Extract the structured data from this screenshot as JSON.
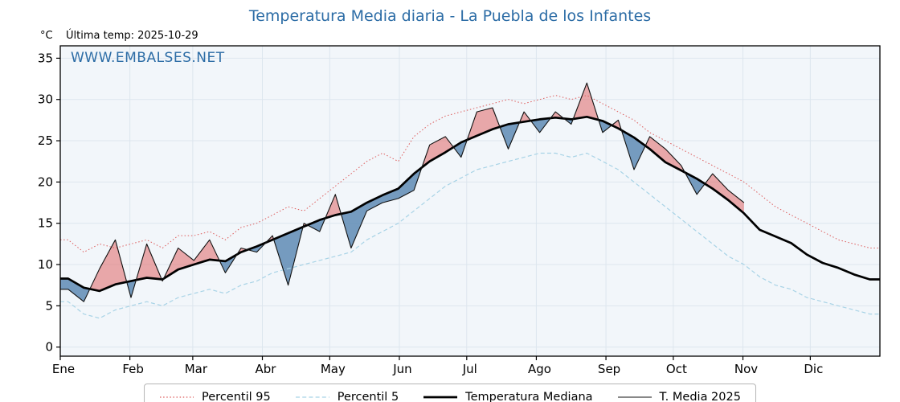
{
  "header": {
    "title": "Temperatura Media diaria - La Puebla de los Infantes",
    "y_unit_label": "°C",
    "last_temp": "Última temp: 2025-10-29",
    "watermark": "WWW.EMBALSES.NET"
  },
  "colors": {
    "title_blue": "#2d6da6",
    "watermark_blue": "#2d6da6",
    "axis_black": "#000000"
  },
  "chart_data": {
    "type": "line",
    "title": "Temperatura Media diaria - La Puebla de los Infantes",
    "ylabel": "°C",
    "ylim": [
      -1.1,
      36.5
    ],
    "yticks": [
      0,
      5,
      10,
      15,
      20,
      25,
      30,
      35
    ],
    "x_months": [
      "Ene",
      "Feb",
      "Mar",
      "Abr",
      "May",
      "Jun",
      "Jul",
      "Ago",
      "Sep",
      "Oct",
      "Nov",
      "Dic"
    ],
    "month_start_days": [
      0,
      31,
      59,
      90,
      120,
      151,
      181,
      212,
      243,
      273,
      304,
      334
    ],
    "days_per_year": 365,
    "sampling": {
      "offset_days": 3.5,
      "step_days": 7
    },
    "plot_bg": "#f2f6fa",
    "grid_color": "#dde6ee",
    "fills": {
      "above": "rgba(224,102,102,0.55)",
      "below": "rgba(95,139,180,0.85)"
    },
    "legend_position": "bottom-center",
    "series": [
      {
        "name": "Percentil 95",
        "role": "p95",
        "style": "dotted",
        "color": "#dd5c5c",
        "values": [
          13.0,
          11.5,
          12.5,
          12.0,
          12.5,
          13.0,
          12.0,
          13.5,
          13.5,
          14.0,
          13.0,
          14.5,
          15.0,
          16.0,
          17.0,
          16.5,
          18.0,
          19.5,
          21.0,
          22.5,
          23.5,
          22.5,
          25.5,
          27.0,
          28.0,
          28.5,
          29.0,
          29.5,
          30.0,
          29.5,
          30.0,
          30.5,
          30.0,
          30.5,
          29.5,
          28.5,
          27.5,
          26.0,
          25.0,
          24.0,
          23.0,
          22.0,
          21.0,
          20.0,
          18.5,
          17.0,
          16.0,
          15.0,
          14.0,
          13.0,
          12.5,
          12.0
        ]
      },
      {
        "name": "Percentil 5",
        "role": "p5",
        "style": "dashed",
        "color": "#a8d3e6",
        "values": [
          5.5,
          4.0,
          3.5,
          4.5,
          5.0,
          5.5,
          5.0,
          6.0,
          6.5,
          7.0,
          6.5,
          7.5,
          8.0,
          9.0,
          9.5,
          10.0,
          10.5,
          11.0,
          11.5,
          13.0,
          14.0,
          15.0,
          16.5,
          18.0,
          19.5,
          20.5,
          21.5,
          22.0,
          22.5,
          23.0,
          23.5,
          23.5,
          23.0,
          23.5,
          22.5,
          21.5,
          20.0,
          18.5,
          17.0,
          15.5,
          14.0,
          12.5,
          11.0,
          10.0,
          8.5,
          7.5,
          7.0,
          6.0,
          5.5,
          5.0,
          4.5,
          4.0
        ]
      },
      {
        "name": "Temperatura Mediana",
        "role": "median",
        "style": "solid-thick",
        "color": "#000000",
        "values": [
          8.3,
          7.2,
          6.8,
          7.6,
          8.0,
          8.4,
          8.2,
          9.4,
          10.0,
          10.6,
          10.4,
          11.5,
          12.2,
          13.0,
          13.8,
          14.6,
          15.4,
          16.0,
          16.4,
          17.5,
          18.4,
          19.2,
          21.0,
          22.5,
          23.6,
          24.8,
          25.6,
          26.4,
          27.0,
          27.3,
          27.6,
          27.8,
          27.6,
          27.9,
          27.4,
          26.5,
          25.4,
          24.0,
          22.4,
          21.4,
          20.4,
          19.2,
          17.8,
          16.2,
          14.2,
          13.4,
          12.6,
          11.2,
          10.2,
          9.6,
          8.8,
          8.2
        ]
      },
      {
        "name": "T. Media 2025",
        "role": "current",
        "style": "solid-thin",
        "color": "#111111",
        "values": [
          7.0,
          5.5,
          9.5,
          13.0,
          6.0,
          12.5,
          8.0,
          12.0,
          10.5,
          13.0,
          9.0,
          12.0,
          11.5,
          13.5,
          7.5,
          15.0,
          14.0,
          18.5,
          12.0,
          16.5,
          17.5,
          18.0,
          19.0,
          24.5,
          25.5,
          23.0,
          28.5,
          29.0,
          24.0,
          28.5,
          26.0,
          28.5,
          27.0,
          32.0,
          26.0,
          27.5,
          21.5,
          25.5,
          24.0,
          22.0,
          18.5,
          21.0,
          19.0,
          17.5
        ]
      }
    ]
  }
}
